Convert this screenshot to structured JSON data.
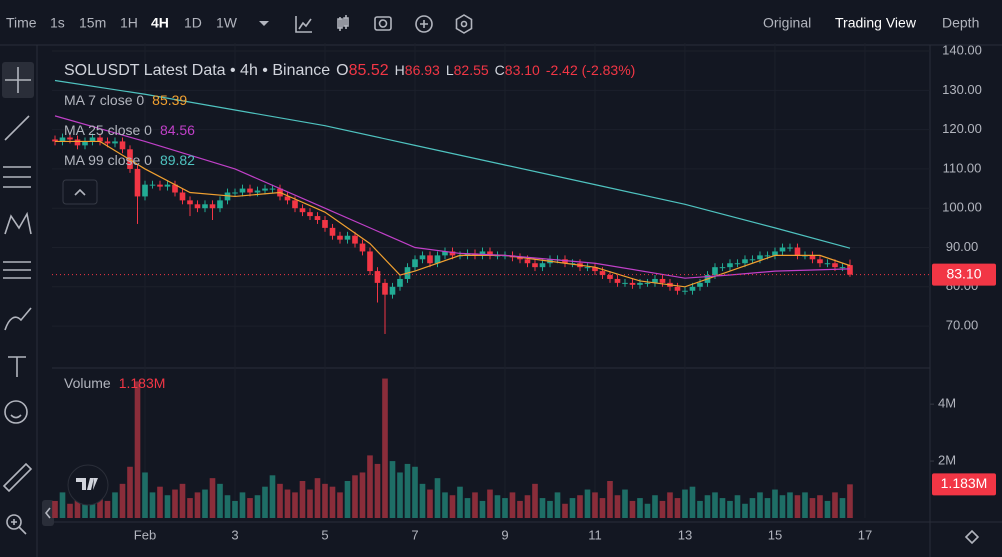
{
  "toolbar": {
    "intervals": [
      "Time",
      "1s",
      "15m",
      "1H",
      "4H",
      "1D",
      "1W"
    ],
    "views": [
      "Original",
      "Trading View",
      "Depth"
    ]
  },
  "chart_data": {
    "type": "candlestick",
    "title": "SOLUSDT Latest Data • 4h • Binance",
    "ohlc": [
      {
        "label": "O",
        "value": "85.52"
      },
      {
        "label": "H",
        "value": "86.93"
      },
      {
        "label": "L",
        "value": "82.55"
      },
      {
        "label": "C",
        "value": "83.10"
      }
    ],
    "change": "-2.42 (-2.83%)",
    "up_color": "#22ab94",
    "down_color": "#f23645",
    "x": [
      0,
      1,
      2,
      3,
      4,
      5,
      6,
      7,
      8,
      9,
      10,
      11,
      12,
      13,
      14,
      15,
      16,
      17,
      18,
      19,
      20,
      21,
      22,
      23,
      24,
      25,
      26,
      27,
      28,
      29,
      30,
      31,
      32,
      33,
      34,
      35,
      36,
      37,
      38,
      39,
      40,
      41,
      42,
      43,
      44,
      45,
      46,
      47,
      48,
      49,
      50,
      51,
      52,
      53,
      54,
      55,
      56,
      57,
      58,
      59,
      60,
      61,
      62,
      63,
      64,
      65,
      66,
      67,
      68,
      69,
      70,
      71,
      72,
      73,
      74,
      75,
      76,
      77,
      78,
      79,
      80,
      81,
      82,
      83,
      84,
      85,
      86,
      87,
      88,
      89,
      90,
      91,
      92,
      93,
      94,
      95,
      96,
      97,
      98,
      99,
      100,
      101,
      102,
      103,
      104,
      105,
      106
    ],
    "open": [
      117.5,
      117,
      118,
      117.5,
      116,
      117,
      118,
      117,
      116.5,
      117,
      115,
      110,
      103,
      106,
      106,
      105.5,
      106,
      104,
      102,
      101,
      100,
      101,
      100,
      102,
      104,
      104,
      105,
      104,
      104.5,
      105,
      105,
      103,
      102,
      100,
      99,
      98,
      97,
      95,
      93,
      92,
      93,
      91,
      89,
      84,
      81,
      78,
      80,
      82,
      85,
      87,
      88,
      86,
      88,
      89,
      88,
      88,
      88.5,
      88,
      89,
      88,
      88,
      88,
      87.5,
      87,
      86,
      85,
      86,
      87,
      87,
      86,
      86,
      85,
      85,
      84,
      83,
      82,
      81,
      81,
      80.5,
      81,
      81,
      82,
      81,
      80,
      79,
      79,
      80,
      81,
      83,
      85,
      85,
      86,
      86,
      87,
      87,
      88,
      88,
      89,
      90,
      90,
      88,
      88,
      87,
      86,
      86,
      85,
      85.52
    ],
    "high": [
      118.5,
      119,
      119,
      118.5,
      118,
      119,
      119,
      118,
      118,
      118,
      116,
      111,
      107,
      107,
      107,
      107,
      107,
      105,
      103,
      102,
      102,
      102,
      103,
      105,
      105,
      106,
      106,
      105.5,
      106,
      106,
      106,
      104,
      103,
      101,
      100,
      99,
      98,
      96,
      94,
      94,
      94,
      92,
      90,
      85,
      82,
      81,
      83,
      86,
      88,
      89,
      89,
      89,
      90,
      90,
      89,
      89.5,
      89.5,
      90,
      90,
      89,
      89,
      89,
      88.5,
      88,
      87,
      87,
      88,
      88,
      88,
      87,
      87,
      86,
      86,
      85,
      84,
      83,
      82,
      82,
      82,
      82,
      83,
      83,
      82,
      81,
      80,
      81,
      82,
      84,
      86,
      86,
      87,
      87,
      88,
      88,
      89,
      89,
      90,
      91,
      91,
      91,
      89,
      89,
      88,
      87,
      87,
      86,
      86.93
    ],
    "low": [
      116,
      116,
      116.5,
      115,
      115,
      116,
      116,
      115.5,
      115.5,
      114,
      109,
      96,
      102,
      105,
      104.5,
      104.5,
      103,
      101,
      98,
      99,
      99,
      97,
      99,
      101,
      103,
      103,
      103,
      103,
      103.5,
      104,
      102,
      101,
      99,
      98,
      97,
      96,
      94,
      92,
      91,
      91,
      90,
      88,
      83,
      76,
      68,
      77,
      79,
      81,
      84,
      86,
      85,
      85,
      87,
      87,
      87,
      87,
      87,
      87,
      87,
      87,
      87,
      86.5,
      86,
      85,
      84,
      84,
      85,
      86,
      85,
      85,
      84,
      84,
      83,
      82,
      81,
      80,
      80,
      79.5,
      79.5,
      80,
      80,
      80,
      79,
      78,
      78,
      78,
      79,
      80,
      82,
      84,
      84,
      85,
      85,
      86,
      86,
      87,
      87,
      88,
      89,
      87,
      87,
      86,
      85,
      85,
      84,
      84,
      82.55
    ],
    "close": [
      117,
      118,
      117.5,
      116,
      117,
      118,
      117,
      116.5,
      117,
      115,
      110,
      103,
      106,
      106,
      105.5,
      106,
      104,
      102,
      101,
      100,
      101,
      100,
      102,
      104,
      104,
      105,
      104,
      104.5,
      105,
      105,
      103,
      102,
      100,
      99,
      98,
      97,
      95,
      93,
      92,
      93,
      91,
      89,
      84,
      81,
      78,
      80,
      82,
      85,
      87,
      88,
      86,
      88,
      89,
      88,
      88,
      88.5,
      88,
      89,
      88,
      88,
      88,
      87.5,
      87,
      86,
      85,
      86,
      87,
      87,
      86,
      86,
      85,
      85,
      84,
      83,
      82,
      81,
      81,
      80.5,
      81,
      81,
      82,
      81,
      80,
      79,
      79,
      80,
      81,
      83,
      85,
      85,
      86,
      86,
      87,
      87,
      88,
      88,
      89,
      90,
      90,
      88,
      88,
      87,
      86,
      86,
      85,
      85,
      83.1
    ],
    "xlim": [
      -0.4,
      116.67
    ],
    "xticks": [
      {
        "value": 12,
        "label": "Feb"
      },
      {
        "value": 24,
        "label": "3"
      },
      {
        "value": 36,
        "label": "5"
      },
      {
        "value": 48,
        "label": "7"
      },
      {
        "value": 60,
        "label": "9"
      },
      {
        "value": 72,
        "label": "11"
      },
      {
        "value": 84,
        "label": "13"
      },
      {
        "value": 96,
        "label": "15"
      },
      {
        "value": 108,
        "label": "17"
      }
    ],
    "ylim": [
      60.1,
      142.05
    ],
    "yticks": [
      {
        "value": 140,
        "label": "140.00"
      },
      {
        "value": 130,
        "label": "130.00"
      },
      {
        "value": 120,
        "label": "120.00"
      },
      {
        "value": 110,
        "label": "110.00"
      },
      {
        "value": 100,
        "label": "100.00"
      },
      {
        "value": 90,
        "label": "90.00"
      },
      {
        "value": 80,
        "label": "80.00"
      },
      {
        "value": 70,
        "label": "70.00"
      }
    ],
    "last_price": {
      "value": 83.1,
      "label": "83.10"
    },
    "series": [
      {
        "name": "MA 7 close 0",
        "color": "#f0a030",
        "x": [
          0,
          6,
          12,
          18,
          24,
          30,
          36,
          42,
          46,
          48,
          54,
          60,
          66,
          72,
          78,
          84,
          90,
          96,
          102,
          106
        ],
        "values": [
          117,
          117,
          110,
          104,
          103,
          104,
          99,
          91,
          83,
          84,
          88,
          88,
          86.5,
          85,
          81.5,
          80,
          84,
          88,
          88,
          85.39
        ]
      },
      {
        "name": "MA 25 close 0",
        "color": "#c040c8",
        "x": [
          0,
          12,
          24,
          36,
          42,
          48,
          54,
          60,
          72,
          84,
          90,
          96,
          106
        ],
        "values": [
          123.5,
          117,
          110,
          100,
          95,
          90,
          88.5,
          88,
          86,
          82.2,
          83,
          84,
          84.56
        ]
      },
      {
        "name": "MA 99 close 0",
        "color": "#4fc3c0",
        "x": [
          0,
          12,
          24,
          36,
          48,
          60,
          72,
          84,
          96,
          106
        ],
        "values": [
          132.5,
          129,
          125,
          121,
          116,
          111,
          106,
          101,
          95,
          89.82
        ]
      }
    ],
    "volume": {
      "title": "Volume",
      "values": [
        0.6,
        0.9,
        0.5,
        0.7,
        1.3,
        0.8,
        1.0,
        0.6,
        0.9,
        1.2,
        1.8,
        4.8,
        1.6,
        0.9,
        1.1,
        0.8,
        1.0,
        1.2,
        0.7,
        0.9,
        1.0,
        1.4,
        1.2,
        0.8,
        0.6,
        0.9,
        0.7,
        0.8,
        1.1,
        1.5,
        1.2,
        1.0,
        0.9,
        1.3,
        1.0,
        1.4,
        1.2,
        1.1,
        0.9,
        1.3,
        1.5,
        1.6,
        2.2,
        1.9,
        4.9,
        2.0,
        1.6,
        1.9,
        1.8,
        1.2,
        1.0,
        1.4,
        0.9,
        0.8,
        1.1,
        0.7,
        0.9,
        0.6,
        1.0,
        0.8,
        0.7,
        0.9,
        0.6,
        0.8,
        1.2,
        0.7,
        0.6,
        0.9,
        0.5,
        0.7,
        0.8,
        1.0,
        0.9,
        0.7,
        1.3,
        0.8,
        1.0,
        0.6,
        0.7,
        0.5,
        0.8,
        0.6,
        0.9,
        0.7,
        1.0,
        1.1,
        0.6,
        0.8,
        0.9,
        0.7,
        0.6,
        0.8,
        0.5,
        0.7,
        0.9,
        0.7,
        1.0,
        0.8,
        0.9,
        0.8,
        0.9,
        0.7,
        0.8,
        0.6,
        0.9,
        0.7,
        1.183
      ],
      "value_label": "1.183M",
      "ylim": [
        0,
        5.2
      ],
      "yticks": [
        {
          "value": 2,
          "label": "2M"
        },
        {
          "value": 4,
          "label": "4M"
        }
      ]
    }
  }
}
